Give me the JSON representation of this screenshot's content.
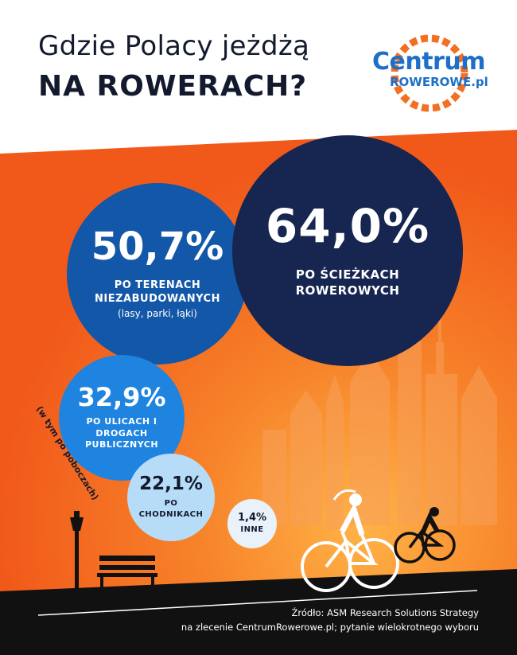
{
  "title": {
    "line1": "Gdzie Polacy jeżdżą",
    "line2": "NA ROWERACH?"
  },
  "logo": {
    "word": "Centrum",
    "sub": "ROWEROWE.pl",
    "icon": "bicycle-chainring-logo",
    "accent_color": "#f36f21",
    "text_color": "#1d6fc7"
  },
  "chart_data": {
    "type": "bubble",
    "title": "Gdzie Polacy jeżdżą NA ROWERACH?",
    "unit": "%",
    "categories": [
      "PO ŚCIEŻKACH ROWEROWYCH",
      "PO TERENACH NIEZABUDOWANYCH",
      "PO ULICACH I DROGACH PUBLICZNYCH",
      "PO CHODNIKACH",
      "INNE"
    ],
    "values": [
      64.0,
      50.7,
      32.9,
      22.1,
      1.4
    ],
    "labels": [
      {
        "value_text": "64,0%",
        "name": "PO ŚCIEŻKACH ROWEROWYCH",
        "color": "#162650"
      },
      {
        "value_text": "50,7%",
        "name": "PO TERENACH NIEZABUDOWANYCH",
        "note": "(lasy, parki, łąki)",
        "color": "#1357a8"
      },
      {
        "value_text": "32,9%",
        "name": "PO ULICACH I DROGACH PUBLICZNYCH",
        "side_note": "(w tym po poboczach)",
        "color": "#1f83e0"
      },
      {
        "value_text": "22,1%",
        "name": "PO CHODNIKACH",
        "color": "#b6dcf8"
      },
      {
        "value_text": "1,4%",
        "name": "INNE",
        "color": "#e9f2fb"
      }
    ]
  },
  "background": {
    "sky_color": "#f26a1b",
    "ground_color": "#111111",
    "scene_icons": [
      "city-skyline",
      "street-lamp-icon",
      "park-bench-icon",
      "cyclist-icon",
      "cyclist-icon"
    ]
  },
  "source": {
    "line1": "Źródło: ASM Research Solutions Strategy",
    "line2": "na zlecenie CentrumRowerowe.pl; pytanie wielokrotnego wyboru"
  }
}
